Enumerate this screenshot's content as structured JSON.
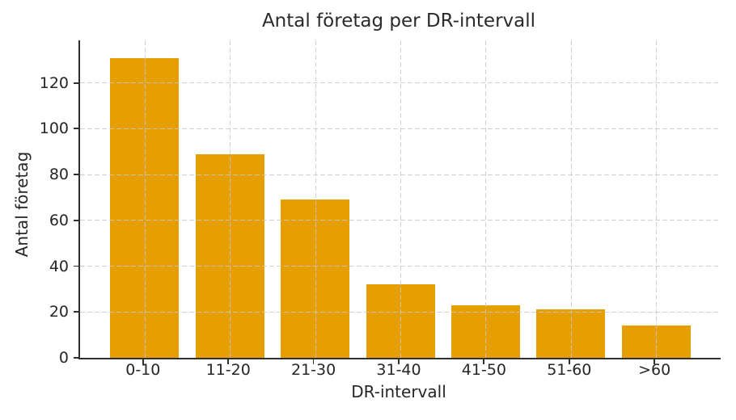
{
  "chart_data": {
    "type": "bar",
    "title": "Antal företag per DR-intervall",
    "xlabel": "DR-intervall",
    "ylabel": "Antal företag",
    "categories": [
      "0-10",
      "11-20",
      "21-30",
      "31-40",
      "41-50",
      "51-60",
      ">60"
    ],
    "values": [
      131,
      89,
      69,
      32,
      23,
      21,
      14
    ],
    "yticks": [
      0,
      20,
      40,
      60,
      80,
      100,
      120
    ],
    "ylim": [
      0,
      138.6
    ],
    "legend": "none",
    "grid": "dashed, horizontal and vertical, drawn over bars",
    "colors": {
      "bar": "#E69F00",
      "grid": "#c8c8c8",
      "spine": "#2f2f2f",
      "text": "#262626",
      "background": "#ffffff"
    }
  }
}
